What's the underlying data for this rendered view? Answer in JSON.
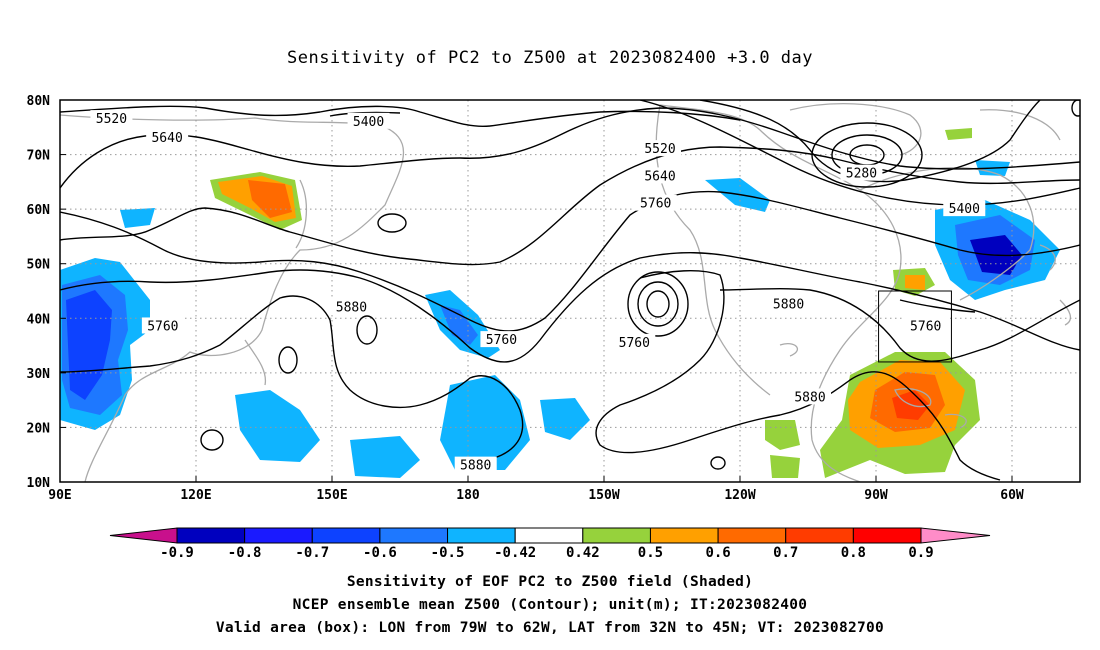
{
  "title": "Sensitivity of PC2 to Z500 at 2023082400 +3.0 day",
  "map": {
    "lat_labels": [
      "80N",
      "70N",
      "60N",
      "50N",
      "40N",
      "30N",
      "20N",
      "10N"
    ],
    "lon_labels": [
      "90E",
      "120E",
      "150E",
      "180",
      "150W",
      "120W",
      "90W",
      "60W"
    ],
    "contour_labels": [
      {
        "text": "5520",
        "lon": 102,
        "lat": 76.5
      },
      {
        "text": "5400",
        "lon": 162,
        "lat": 76
      },
      {
        "text": "5640",
        "lon": 115,
        "lat": 73
      },
      {
        "text": "5520",
        "lon": 230,
        "lat": 71
      },
      {
        "text": "5640",
        "lon": 230,
        "lat": 66
      },
      {
        "text": "5760",
        "lon": 229,
        "lat": 61
      },
      {
        "text": "5280",
        "lon": 277,
        "lat": 66.5
      },
      {
        "text": "5400",
        "lon": 301,
        "lat": 60
      },
      {
        "text": "5880",
        "lon": 158,
        "lat": 42
      },
      {
        "text": "5760",
        "lon": 114,
        "lat": 38.5
      },
      {
        "text": "5760",
        "lon": 193,
        "lat": 36
      },
      {
        "text": "5760",
        "lon": 224,
        "lat": 35.5
      },
      {
        "text": "5880",
        "lon": 260,
        "lat": 42.5
      },
      {
        "text": "5760",
        "lon": 292,
        "lat": 38.5
      },
      {
        "text": "5880",
        "lon": 265,
        "lat": 25.5
      },
      {
        "text": "5880",
        "lon": 187,
        "lat": 13
      }
    ],
    "valid_box": {
      "lon_min": 281,
      "lon_max": 298,
      "lat_min": 32,
      "lat_max": 45
    }
  },
  "colorbar": {
    "ticks": [
      "-0.9",
      "-0.8",
      "-0.7",
      "-0.6",
      "-0.5",
      "-0.42",
      "0.42",
      "0.5",
      "0.6",
      "0.7",
      "0.8",
      "0.9"
    ],
    "colors": [
      "#0000bf",
      "#1a1aff",
      "#0d42ff",
      "#1e78ff",
      "#0fb4ff",
      "#ffffff",
      "#96d23c",
      "#ffa000",
      "#ff6a00",
      "#ff3c00",
      "#ff0000"
    ],
    "low_extend_color": "#c8108c",
    "high_extend_color": "#ff8cc8"
  },
  "footer": {
    "line1": "Sensitivity of EOF PC2 to Z500 field (Shaded)",
    "line2": "NCEP ensemble mean Z500 (Contour); unit(m); IT:2023082400",
    "line3": "Valid area (box): LON from 79W to 62W, LAT from 32N to 45N; VT: 2023082700"
  }
}
